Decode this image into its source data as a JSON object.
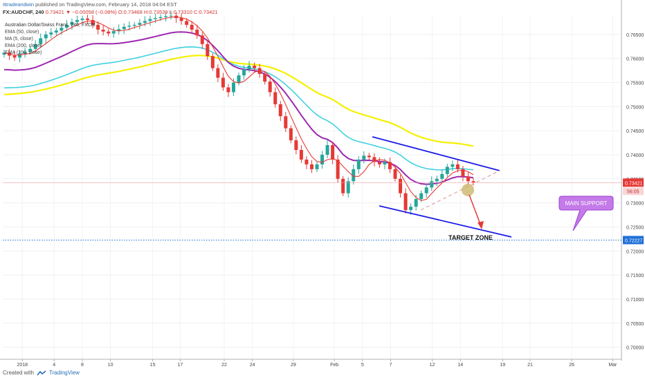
{
  "header": {
    "publisher": "Ittradeandwin",
    "published_text": "published on TradingView.com, February 14, 2018 04:04 EST"
  },
  "ticker": {
    "symbol": "FX:AUDCHF, 240",
    "last": "0.73421",
    "change": "▼ −0.00058 (−0.08%)",
    "ohlc": "O:0.73468 H:0.73539 L:0.73310 C:0.73421"
  },
  "footer": {
    "created_with": "Created with",
    "brand": "TradingView"
  },
  "colors": {
    "up_candle": "#26a69a",
    "down_candle": "#e53935",
    "ema50": "#9c27b0",
    "ma5": "#e53935",
    "ema100": "#40d0e0",
    "ema200": "#f5f000",
    "channel": "#1a1ae6",
    "trend_dashed": "#e0a0a0",
    "arrow": "#e53935",
    "bubble_fill": "#c47ae8",
    "bubble_stroke": "#9b3fd0",
    "target_line": "#1e6fd9",
    "current_price_tag": "#e53935",
    "target_price_tag": "#1e6fd9"
  },
  "chart_data": {
    "type": "candlestick",
    "title": "Australian Dollar/Swiss Franc, 240, FXCM",
    "legend": [
      "EMA (50, close)",
      "MA (5, close)",
      "EMA (200, close)",
      "EMA (100, close)"
    ],
    "legend_placement": "top-left",
    "grid": true,
    "y_axis": {
      "ticks": [
        "0.76500",
        "0.76000",
        "0.75500",
        "0.75000",
        "0.74500",
        "0.74000",
        "0.73500",
        "0.73000",
        "0.72500",
        "0.72000",
        "0.71500",
        "0.71000",
        "0.70500",
        "0.70000"
      ],
      "ylim": [
        0.6975,
        0.769
      ],
      "side": "right"
    },
    "x_axis": {
      "ticks": [
        "2018",
        "4",
        "8",
        "10",
        "15",
        "17",
        "22",
        "24",
        "29",
        "Feb",
        "5",
        "7",
        "12",
        "14",
        "19",
        "21",
        "26",
        "Mar"
      ]
    },
    "current_price": {
      "value": 0.73421,
      "label": "0.73421",
      "countdown": "56:05"
    },
    "target_price": {
      "value": 0.72227,
      "label": "0.72227"
    },
    "annotations": {
      "target_zone": "TARGET ZONE",
      "main_support": "MAIN SUPPORT"
    },
    "close_series": [
      0.7612,
      0.7606,
      0.7602,
      0.761,
      0.7614,
      0.762,
      0.763,
      0.7642,
      0.765,
      0.7654,
      0.7658,
      0.7664,
      0.767,
      0.7676,
      0.768,
      0.7683,
      0.768,
      0.767,
      0.766,
      0.7656,
      0.7652,
      0.7657,
      0.7661,
      0.7666,
      0.7668,
      0.767,
      0.7674,
      0.7678,
      0.7682,
      0.7684,
      0.7686,
      0.7688,
      0.7689,
      0.7684,
      0.7678,
      0.767,
      0.766,
      0.7648,
      0.763,
      0.7605,
      0.758,
      0.756,
      0.754,
      0.753,
      0.755,
      0.7565,
      0.7578,
      0.7585,
      0.758,
      0.7568,
      0.7552,
      0.753,
      0.7505,
      0.748,
      0.7455,
      0.743,
      0.741,
      0.739,
      0.738,
      0.737,
      0.738,
      0.74,
      0.742,
      0.739,
      0.735,
      0.732,
      0.7345,
      0.737,
      0.739,
      0.7398,
      0.7395,
      0.7385,
      0.738,
      0.7385,
      0.737,
      0.735,
      0.732,
      0.7285,
      0.7292,
      0.7308,
      0.732,
      0.7332,
      0.7345,
      0.735,
      0.736,
      0.7375,
      0.738,
      0.737,
      0.7355,
      0.7345,
      0.7342
    ]
  }
}
